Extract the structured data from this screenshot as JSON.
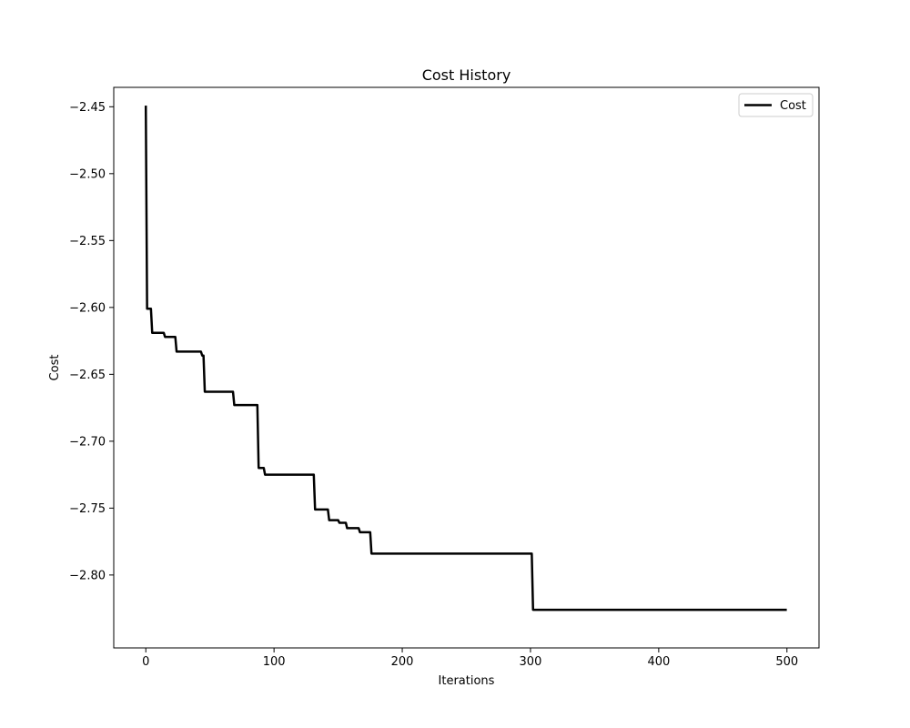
{
  "chart_data": {
    "type": "line",
    "title": "Cost History",
    "xlabel": "Iterations",
    "ylabel": "Cost",
    "xlim": [
      -25,
      525
    ],
    "ylim": [
      -2.8545,
      -2.4355
    ],
    "xticks": [
      0,
      100,
      200,
      300,
      400,
      500
    ],
    "yticks": [
      -2.45,
      -2.5,
      -2.55,
      -2.6,
      -2.65,
      -2.7,
      -2.75,
      -2.8
    ],
    "xtick_labels": [
      "0",
      "100",
      "200",
      "300",
      "400",
      "500"
    ],
    "ytick_labels": [
      "−2.45",
      "−2.50",
      "−2.55",
      "−2.60",
      "−2.65",
      "−2.70",
      "−2.75",
      "−2.80"
    ],
    "grid": false,
    "legend_position": "top-right",
    "series": [
      {
        "name": "Cost",
        "color": "#000000",
        "x": [
          0,
          1,
          2,
          3,
          4,
          5,
          14,
          15,
          23,
          24,
          43,
          44,
          45,
          46,
          68,
          69,
          87,
          88,
          92,
          93,
          131,
          132,
          142,
          143,
          150,
          151,
          156,
          157,
          166,
          167,
          175,
          176,
          301,
          302,
          499
        ],
        "y": [
          -2.45,
          -2.601,
          -2.601,
          -2.601,
          -2.601,
          -2.619,
          -2.619,
          -2.622,
          -2.622,
          -2.633,
          -2.633,
          -2.636,
          -2.636,
          -2.663,
          -2.663,
          -2.673,
          -2.673,
          -2.72,
          -2.72,
          -2.725,
          -2.725,
          -2.751,
          -2.751,
          -2.759,
          -2.759,
          -2.761,
          -2.761,
          -2.765,
          -2.765,
          -2.768,
          -2.768,
          -2.784,
          -2.784,
          -2.826,
          -2.826
        ]
      }
    ]
  }
}
